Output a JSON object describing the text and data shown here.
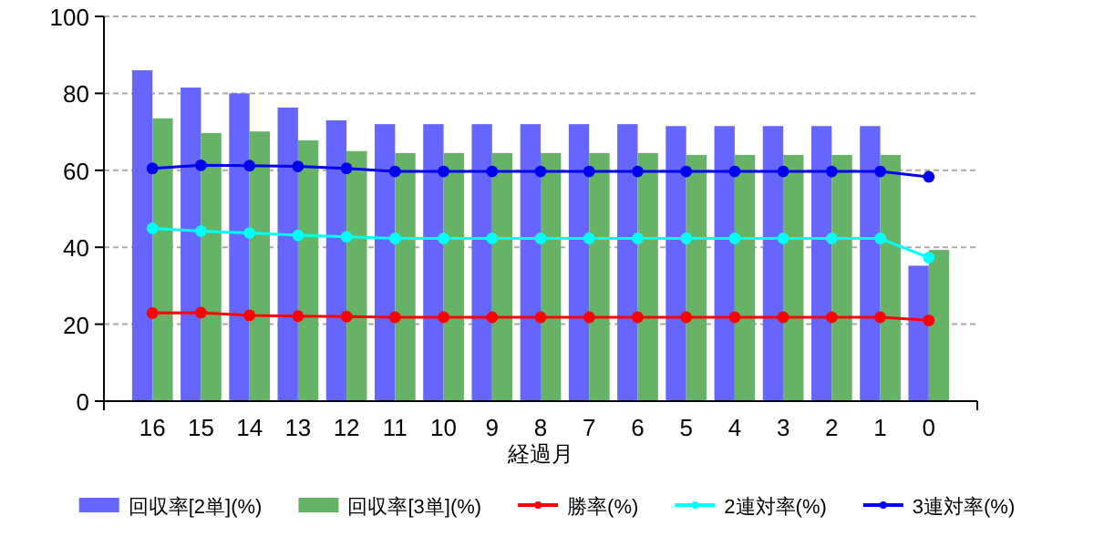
{
  "chart_data": {
    "type": "bar",
    "xlabel": "経過月",
    "categories": [
      "16",
      "15",
      "14",
      "13",
      "12",
      "11",
      "10",
      "9",
      "8",
      "7",
      "6",
      "5",
      "4",
      "3",
      "2",
      "1",
      "0"
    ],
    "series": [
      {
        "name": "回収率[2単](%)",
        "color": "#6666ff",
        "values": [
          86,
          81.5,
          80,
          76.3,
          73,
          72,
          72,
          72,
          72,
          72,
          72,
          71.5,
          71.5,
          71.5,
          71.5,
          71.5,
          35.2
        ]
      },
      {
        "name": "回収率[3単](%)",
        "color": "#66b266",
        "values": [
          73.5,
          69.7,
          70.1,
          67.8,
          65,
          64.5,
          64.5,
          64.5,
          64.5,
          64.5,
          64.5,
          64,
          64,
          64,
          64,
          64,
          39.3
        ]
      },
      {
        "name": "勝率(%)",
        "type": "line",
        "color": "#ff0000",
        "values": [
          22.9,
          23,
          22.3,
          22.1,
          22,
          21.8,
          21.8,
          21.8,
          21.8,
          21.8,
          21.8,
          21.8,
          21.8,
          21.8,
          21.8,
          21.8,
          21
        ]
      },
      {
        "name": "2連対率(%)",
        "type": "line",
        "color": "#00ffff",
        "values": [
          44.9,
          44.2,
          43.7,
          43.1,
          42.7,
          42.3,
          42.3,
          42.3,
          42.3,
          42.3,
          42.3,
          42.3,
          42.3,
          42.3,
          42.3,
          42.3,
          37.3
        ]
      },
      {
        "name": "3連対率(%)",
        "type": "line",
        "color": "#0000ee",
        "values": [
          60.5,
          61.3,
          61.2,
          61,
          60.5,
          59.7,
          59.7,
          59.7,
          59.7,
          59.7,
          59.7,
          59.7,
          59.7,
          59.7,
          59.7,
          59.7,
          58.3
        ]
      }
    ],
    "ylim": [
      0,
      100
    ],
    "yticks": [
      0,
      20,
      40,
      60,
      80,
      100
    ],
    "grid": "y",
    "legend": "bottom",
    "marker": "circle",
    "line_style": "solid"
  }
}
